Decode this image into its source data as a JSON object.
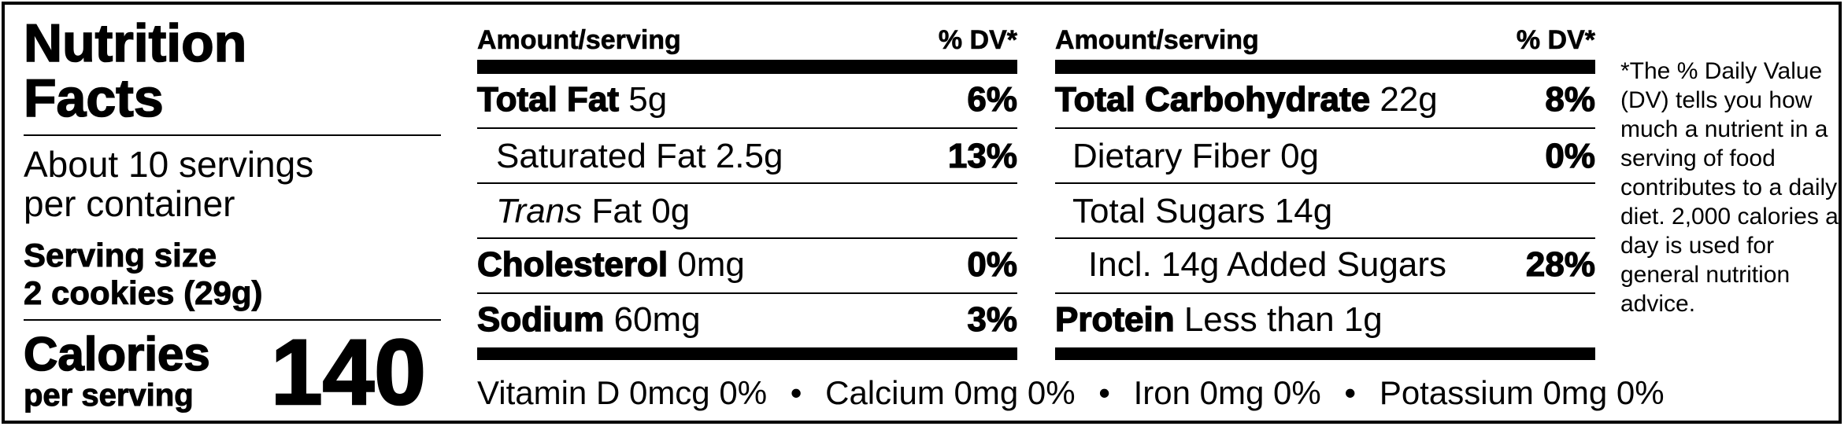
{
  "title_line1": "Nutrition",
  "title_line2": "Facts",
  "servings_line1": "About 10 servings",
  "servings_line2": "per container",
  "serving_size_label": "Serving size",
  "serving_size_value": "2 cookies (29g)",
  "calories_label": "Calories",
  "calories_sub": "per serving",
  "calories_value": "140",
  "left_table": {
    "header_amount": "Amount/serving",
    "header_dv": "% DV*",
    "rows": [
      {
        "label": "Total Fat",
        "amount": "5g",
        "dv": "6%"
      },
      {
        "label": "Saturated Fat 2.5g",
        "dv": "13%"
      },
      {
        "label_italic": "Trans",
        "label_rest": "Fat 0g"
      },
      {
        "label": "Cholesterol",
        "amount": "0mg",
        "dv": "0%"
      },
      {
        "label": "Sodium",
        "amount": "60mg",
        "dv": "3%"
      }
    ]
  },
  "right_table": {
    "header_amount": "Amount/serving",
    "header_dv": "% DV*",
    "rows": [
      {
        "label": "Total Carbohydrate",
        "amount": "22g",
        "dv": "8%"
      },
      {
        "label": "Dietary Fiber 0g",
        "dv": "0%"
      },
      {
        "label": "Total Sugars 14g"
      },
      {
        "label": "Incl. 14g Added Sugars",
        "dv": "28%"
      },
      {
        "label": "Protein",
        "amount": "Less than 1g"
      }
    ]
  },
  "vitamins": [
    "Vitamin D 0mcg 0%",
    "Calcium 0mg 0%",
    "Iron 0mg 0%",
    "Potassium 0mg 0%"
  ],
  "bullet": "•",
  "footnote": "*The % Daily Value (DV) tells you how much a nutrient in a serving of food contributes to a daily diet. 2,000 calories a day is used for general nutrition advice."
}
